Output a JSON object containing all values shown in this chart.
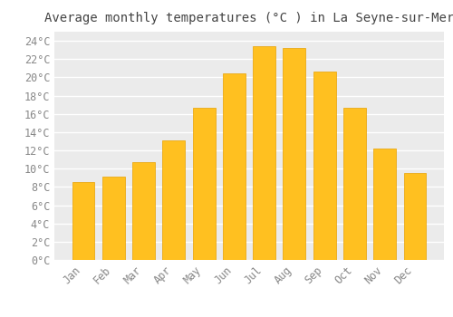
{
  "title": "Average monthly temperatures (°C ) in La Seyne-sur-Mer",
  "months": [
    "Jan",
    "Feb",
    "Mar",
    "Apr",
    "May",
    "Jun",
    "Jul",
    "Aug",
    "Sep",
    "Oct",
    "Nov",
    "Dec"
  ],
  "values": [
    8.5,
    9.1,
    10.7,
    13.1,
    16.7,
    20.4,
    23.4,
    23.2,
    20.6,
    16.7,
    12.2,
    9.5
  ],
  "bar_color": "#FFC020",
  "bar_edge_color": "#E8A000",
  "plot_bg_color": "#EBEBEB",
  "fig_bg_color": "#FFFFFF",
  "grid_color": "#FFFFFF",
  "text_color": "#888888",
  "title_color": "#444444",
  "ylim": [
    0,
    25
  ],
  "ytick_step": 2,
  "title_fontsize": 10,
  "tick_fontsize": 8.5
}
